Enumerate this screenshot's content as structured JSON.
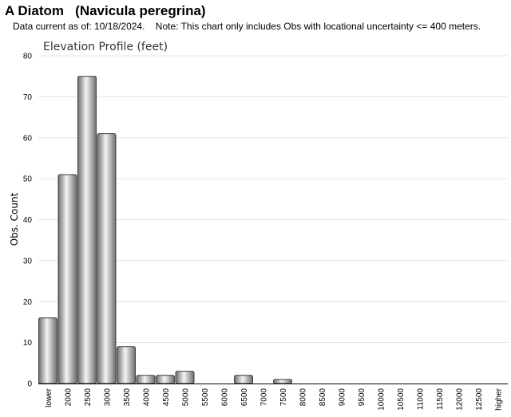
{
  "header": {
    "title": "A Diatom   (Navicula peregrina)",
    "note": "Data current as of: 10/18/2024.    Note: This chart only includes Obs with locational uncertainty <= 400 meters."
  },
  "chart_data": {
    "type": "bar",
    "title": "Elevation Profile (feet)",
    "xlabel": "",
    "ylabel": "Obs. Count",
    "ylim": [
      0,
      80
    ],
    "yticks": [
      0,
      10,
      20,
      30,
      40,
      50,
      60,
      70,
      80
    ],
    "grid": true,
    "categories": [
      "lower",
      "2000",
      "2500",
      "3000",
      "3500",
      "4000",
      "4500",
      "5000",
      "5500",
      "6000",
      "6500",
      "7000",
      "7500",
      "8000",
      "8500",
      "9000",
      "9500",
      "10000",
      "10500",
      "11000",
      "11500",
      "12000",
      "12500",
      "higher"
    ],
    "values": [
      16,
      51,
      75,
      61,
      9,
      2,
      2,
      3,
      0,
      0,
      2,
      0,
      1,
      0,
      0,
      0,
      0,
      0,
      0,
      0,
      0,
      0,
      0,
      0
    ],
    "colors": {
      "bar_dark": "#6e6e6e",
      "bar_light": "#f4f4f4",
      "bar_stroke": "#3c3c3c",
      "grid": "#e3e3e3",
      "axis": "#000000"
    }
  }
}
